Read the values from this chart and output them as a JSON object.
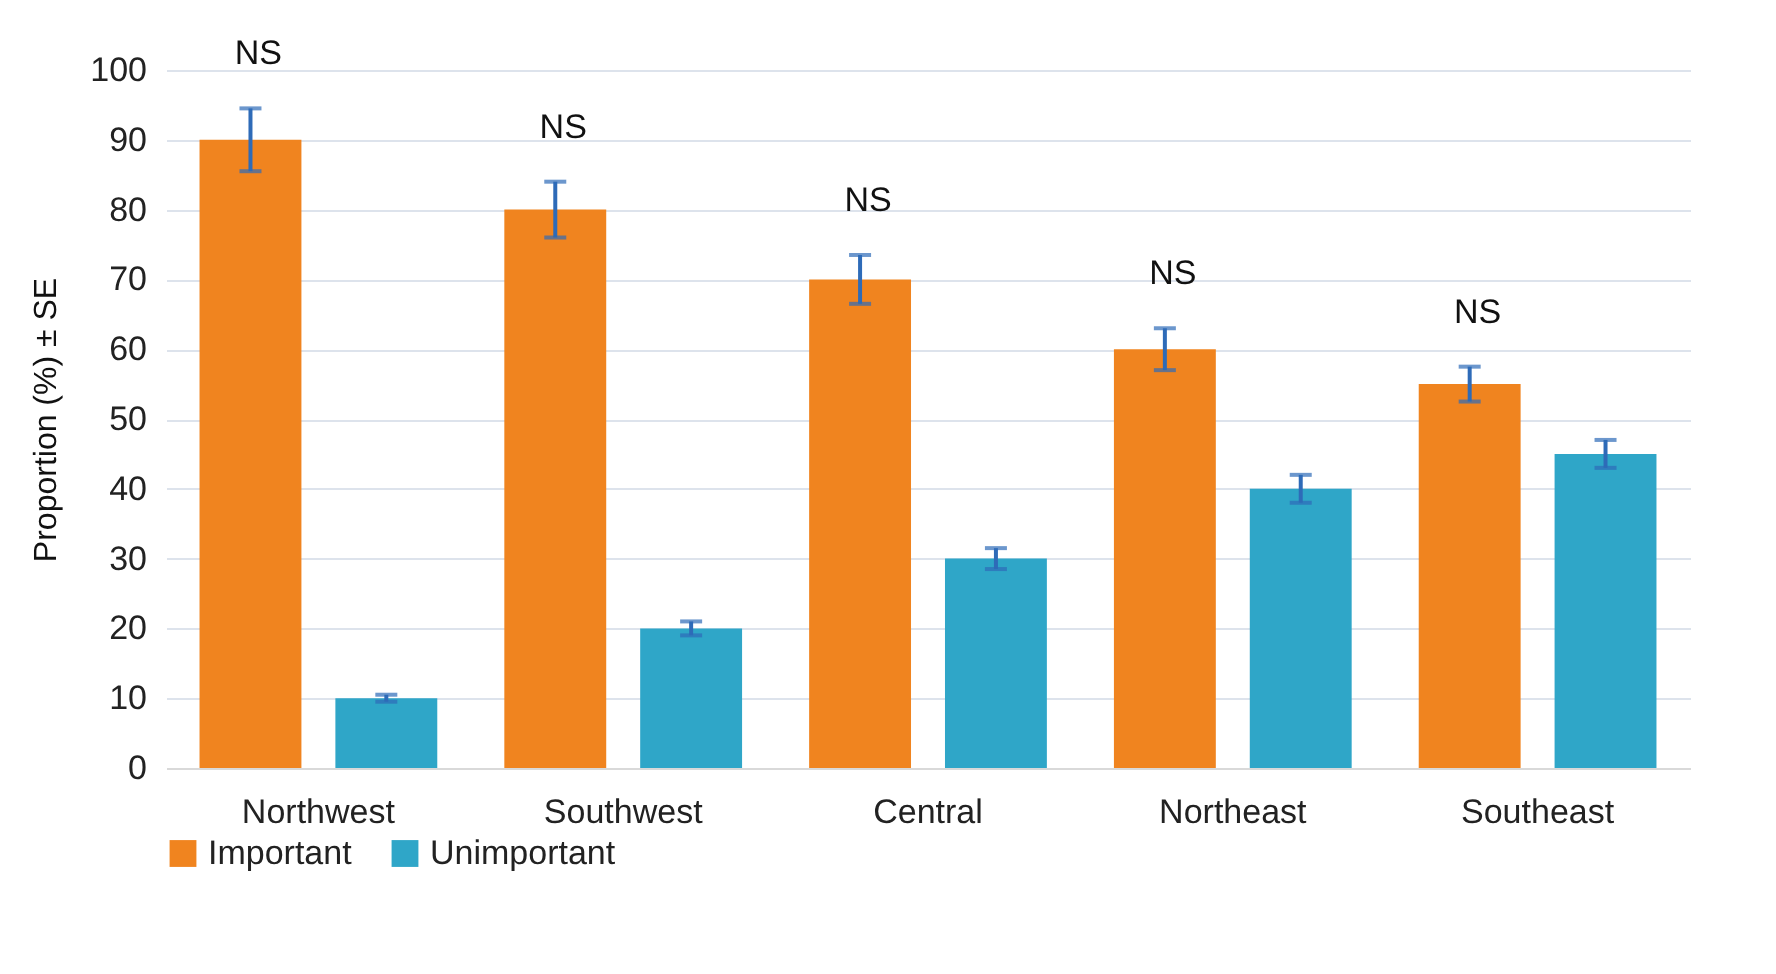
{
  "chart_data": {
    "type": "bar",
    "ylabel": "Proportion (%) ± SE",
    "categories": [
      "Northwest",
      "Southwest",
      "Central",
      "Northeast",
      "Southeast"
    ],
    "series": [
      {
        "name": "Important",
        "color": "#f0841f",
        "values": [
          90,
          80,
          70,
          60,
          55
        ],
        "errors": [
          4.5,
          4,
          3.5,
          3,
          2.5
        ]
      },
      {
        "name": "Unimportant",
        "color": "#2fa6c8",
        "values": [
          10,
          20,
          30,
          40,
          45
        ],
        "errors": [
          0.5,
          1,
          1.5,
          2,
          2
        ]
      }
    ],
    "ylim": [
      0,
      100
    ],
    "yticks": [
      0,
      10,
      20,
      30,
      40,
      50,
      60,
      70,
      80,
      90,
      100
    ],
    "grid": "y",
    "legend": "bottom",
    "annotations": [
      "NS",
      "NS",
      "NS",
      "NS",
      "NS"
    ]
  }
}
